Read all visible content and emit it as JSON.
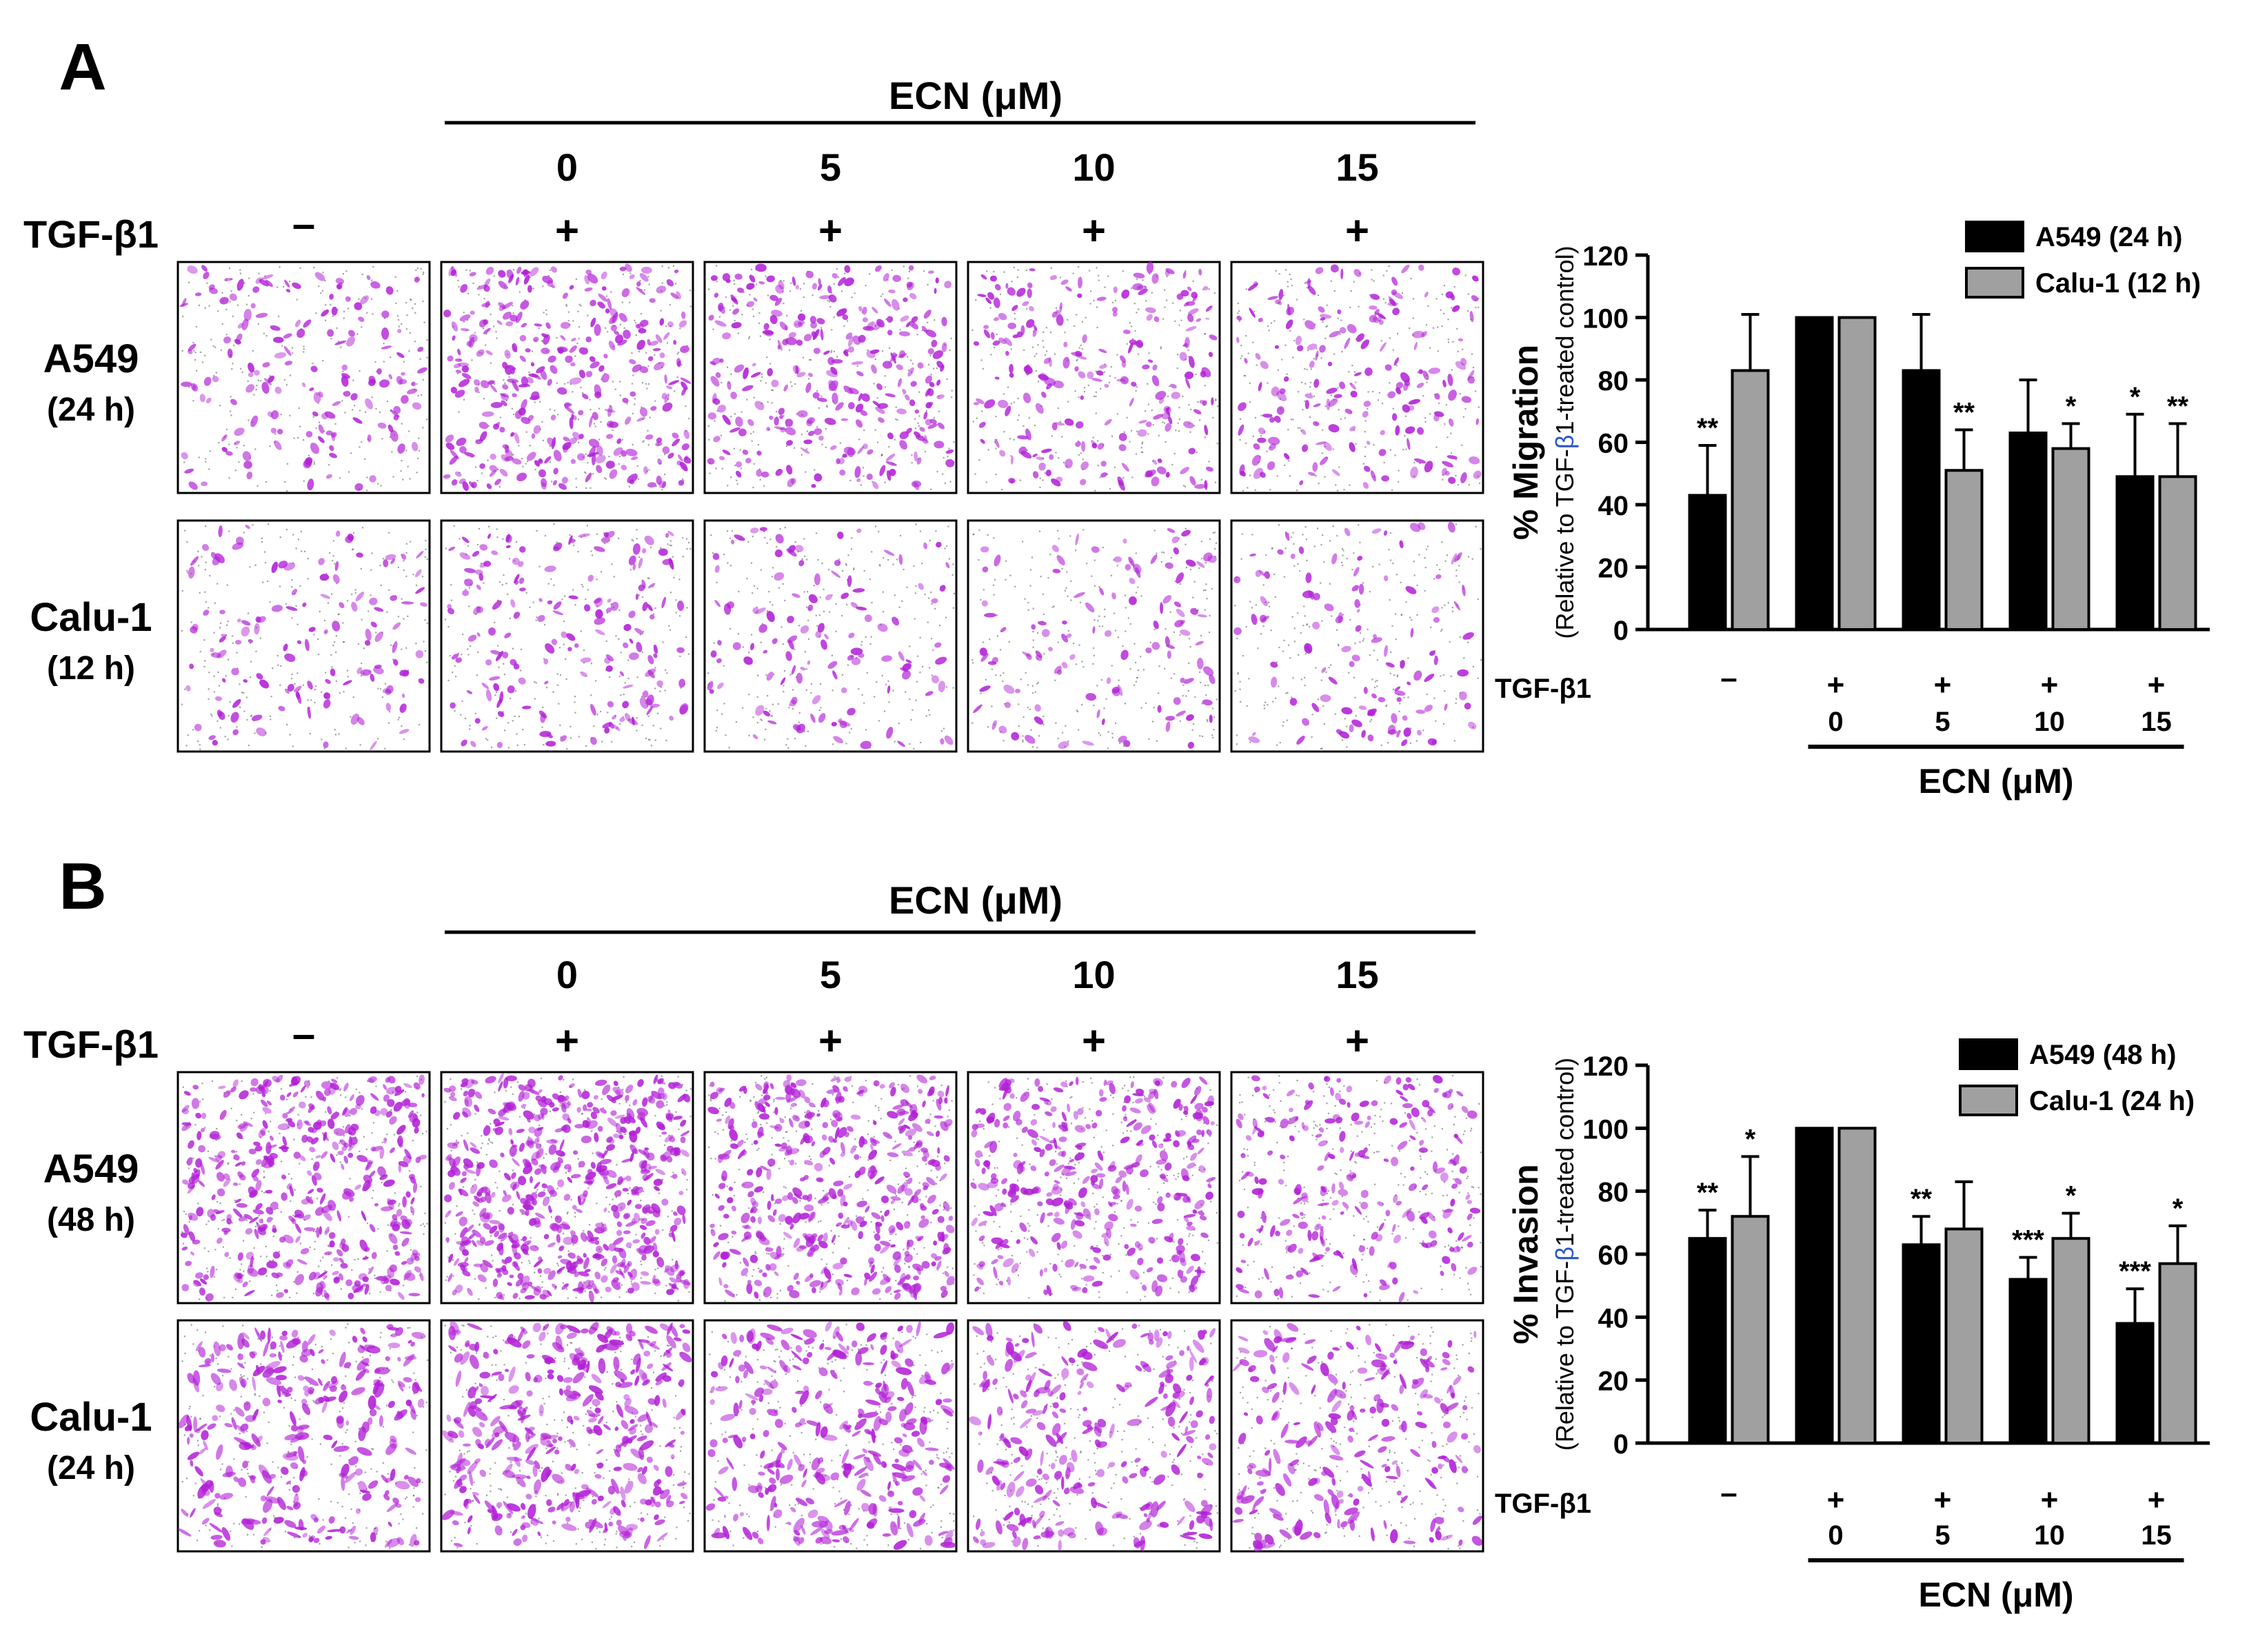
{
  "panels": [
    {
      "letter": "A",
      "ecn_header": "ECN (μM)",
      "ecn_values": [
        "0",
        "5",
        "10",
        "15"
      ],
      "tgf_label": "TGF-β1",
      "tgf_values": [
        "–",
        "+",
        "+",
        "+",
        "+"
      ],
      "rows": [
        {
          "line1": "A549",
          "line2": "(24 h)",
          "density": [
            0.22,
            0.55,
            0.45,
            0.32,
            0.26
          ]
        },
        {
          "line1": "Calu-1",
          "line2": "(12 h)",
          "density": [
            0.16,
            0.24,
            0.14,
            0.13,
            0.13
          ]
        }
      ],
      "stain_color": "#b21fd6"
    },
    {
      "letter": "B",
      "ecn_header": "ECN (μM)",
      "ecn_values": [
        "0",
        "5",
        "10",
        "15"
      ],
      "tgf_label": "TGF-β1",
      "tgf_values": [
        "–",
        "+",
        "+",
        "+",
        "+"
      ],
      "rows": [
        {
          "line1": "A549",
          "line2": "(48 h)",
          "density": [
            0.7,
            1.0,
            0.72,
            0.55,
            0.35
          ]
        },
        {
          "line1": "Calu-1",
          "line2": "(24 h)",
          "density": [
            0.48,
            0.62,
            0.5,
            0.4,
            0.33
          ]
        }
      ],
      "stain_color": "#b21fd6"
    }
  ],
  "chart_data": [
    {
      "type": "bar",
      "ylabel": "% Migration",
      "ylabel_sub_prefix": "(Relative to TGF-",
      "ylabel_sub_beta": "β",
      "ylabel_sub_suffix": "1-treated control)",
      "ylim": [
        0,
        120
      ],
      "yticks": [
        "0",
        "20",
        "40",
        "60",
        "80",
        "100",
        "120"
      ],
      "tgf_label": "TGF-β1",
      "tgf_values": [
        "–",
        "+",
        "+",
        "+",
        "+"
      ],
      "ecn_values": [
        "",
        "0",
        "5",
        "10",
        "15"
      ],
      "xlabel": "ECN (μM)",
      "legend_position": "top-right",
      "series": [
        {
          "name": "A549 (24 h)",
          "color": "#000000",
          "values": [
            43,
            100,
            83,
            63,
            49
          ],
          "errors": [
            16,
            0,
            18,
            17,
            20
          ],
          "sig": [
            "**",
            "",
            "",
            "",
            "*"
          ]
        },
        {
          "name": "Calu-1 (12 h)",
          "color": "#a0a0a0",
          "values": [
            83,
            100,
            51,
            58,
            49
          ],
          "errors": [
            18,
            0,
            13,
            8,
            17
          ],
          "sig": [
            "",
            "",
            "**",
            "*",
            "**"
          ]
        }
      ]
    },
    {
      "type": "bar",
      "ylabel": "% Invasion",
      "ylabel_sub_prefix": "(Relative to TGF-",
      "ylabel_sub_beta": "β",
      "ylabel_sub_suffix": "1-treated control)",
      "ylim": [
        0,
        120
      ],
      "yticks": [
        "0",
        "20",
        "40",
        "60",
        "80",
        "100",
        "120"
      ],
      "tgf_label": "TGF-β1",
      "tgf_values": [
        "–",
        "+",
        "+",
        "+",
        "+"
      ],
      "ecn_values": [
        "",
        "0",
        "5",
        "10",
        "15"
      ],
      "xlabel": "ECN (μM)",
      "legend_position": "top-right",
      "series": [
        {
          "name": "A549 (48 h)",
          "color": "#000000",
          "values": [
            65,
            100,
            63,
            52,
            38
          ],
          "errors": [
            9,
            0,
            9,
            7,
            11
          ],
          "sig": [
            "**",
            "",
            "**",
            "***",
            "***"
          ]
        },
        {
          "name": "Calu-1 (24 h)",
          "color": "#a0a0a0",
          "values": [
            72,
            100,
            68,
            65,
            57
          ],
          "errors": [
            19,
            0,
            15,
            8,
            12
          ],
          "sig": [
            "*",
            "",
            "",
            "*",
            "*"
          ]
        }
      ]
    }
  ]
}
